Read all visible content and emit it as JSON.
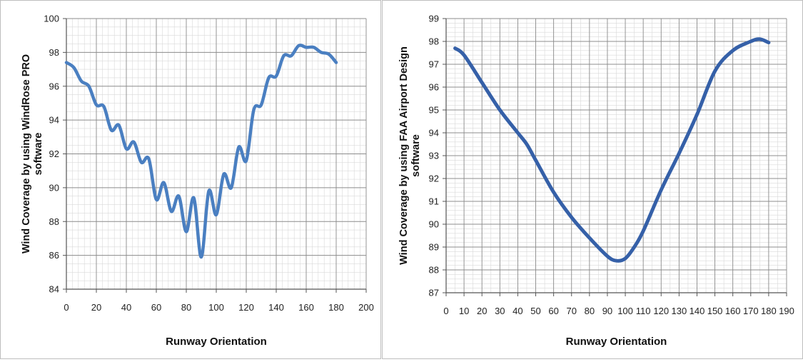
{
  "chart_data": [
    {
      "type": "line",
      "title": "",
      "xlabel": "Runway Orientation",
      "ylabel": "Wind Coverage by using WindRose PRO software",
      "xlim": [
        0,
        200
      ],
      "ylim": [
        84,
        100
      ],
      "x_ticks": [
        "0",
        "20",
        "40",
        "60",
        "80",
        "100",
        "120",
        "140",
        "160",
        "180",
        "200"
      ],
      "y_ticks": [
        "84",
        "86",
        "88",
        "90",
        "92",
        "94",
        "96",
        "98",
        "100"
      ],
      "grid": true,
      "line_color": "#4a7fc1",
      "series": [
        {
          "x": [
            0,
            5,
            10,
            15,
            20,
            25,
            30,
            35,
            40,
            45,
            50,
            55,
            60,
            65,
            70,
            75,
            80,
            85,
            90,
            95,
            100,
            105,
            110,
            115,
            120,
            125,
            130,
            135,
            140,
            145,
            150,
            155,
            160,
            165,
            170,
            175,
            180
          ],
          "y": [
            97.4,
            97.1,
            96.3,
            96.0,
            94.9,
            94.8,
            93.4,
            93.7,
            92.3,
            92.7,
            91.5,
            91.7,
            89.3,
            90.3,
            88.6,
            89.5,
            87.4,
            89.4,
            85.9,
            89.8,
            88.4,
            90.8,
            90.0,
            92.4,
            91.6,
            94.6,
            94.9,
            96.5,
            96.6,
            97.8,
            97.8,
            98.4,
            98.3,
            98.3,
            98.0,
            97.9,
            97.4
          ]
        }
      ]
    },
    {
      "type": "line",
      "title": "",
      "xlabel": "Runway Orientation",
      "ylabel": "Wind Coverage by using FAA Airport Design software",
      "xlim": [
        0,
        190
      ],
      "ylim": [
        87,
        99
      ],
      "x_ticks": [
        "0",
        "10",
        "20",
        "30",
        "40",
        "50",
        "60",
        "70",
        "80",
        "90",
        "100",
        "110",
        "120",
        "130",
        "140",
        "150",
        "160",
        "170",
        "180",
        "190"
      ],
      "y_ticks": [
        "87",
        "88",
        "89",
        "90",
        "91",
        "92",
        "93",
        "94",
        "95",
        "96",
        "97",
        "98",
        "99"
      ],
      "grid": true,
      "line_color": "#3560a8",
      "series": [
        {
          "x": [
            5,
            10,
            20,
            30,
            40,
            45,
            50,
            60,
            70,
            80,
            90,
            95,
            100,
            105,
            110,
            120,
            130,
            140,
            150,
            160,
            170,
            175,
            180
          ],
          "y": [
            97.7,
            97.4,
            96.2,
            95.0,
            94.0,
            93.5,
            92.8,
            91.4,
            90.3,
            89.4,
            88.6,
            88.4,
            88.5,
            89.0,
            89.7,
            91.5,
            93.1,
            94.8,
            96.7,
            97.6,
            98.0,
            98.1,
            97.95
          ]
        }
      ]
    }
  ]
}
